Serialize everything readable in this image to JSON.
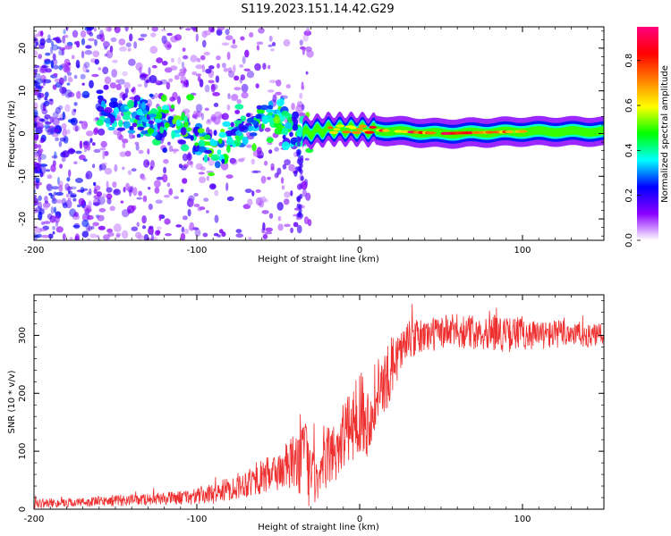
{
  "title": "S119.2023.151.14.42.G29",
  "chart_data": [
    {
      "type": "heatmap",
      "name": "spectrogram",
      "xlabel": "Height of straight line (km)",
      "ylabel": "Frequency (Hz)",
      "xlim": [
        -200,
        150
      ],
      "ylim": [
        -25,
        25
      ],
      "x_ticks": [
        "-200",
        "-100",
        "0",
        "100"
      ],
      "x_tick_values": [
        -200,
        -100,
        0,
        100
      ],
      "y_ticks": [
        "-20",
        "-10",
        "0",
        "10",
        "20"
      ],
      "y_tick_values": [
        -20,
        -10,
        0,
        10,
        20
      ],
      "colorbar": {
        "label": "Normalized spectral amplitude",
        "range": [
          0,
          0.95
        ],
        "ticks": [
          "0.0",
          "0.2",
          "0.4",
          "0.6",
          "0.8"
        ],
        "tick_values": [
          0.0,
          0.2,
          0.4,
          0.6,
          0.8
        ],
        "colors": [
          "#ffffff",
          "#8a00ff",
          "#0000ff",
          "#00ffff",
          "#00ff00",
          "#ffff00",
          "#ff8000",
          "#ff0000",
          "#ff0080"
        ]
      },
      "ridge": [
        {
          "x": -160,
          "freq": 6,
          "amp": 0.35
        },
        {
          "x": -130,
          "freq": 3,
          "amp": 0.4
        },
        {
          "x": -110,
          "freq": 2,
          "amp": 0.45
        },
        {
          "x": -90,
          "freq": -4,
          "amp": 0.45
        },
        {
          "x": -70,
          "freq": 1,
          "amp": 0.4
        },
        {
          "x": -50,
          "freq": 4,
          "amp": 0.45
        },
        {
          "x": -35,
          "freq": 0,
          "amp": 0.4
        },
        {
          "x": -20,
          "freq": 1,
          "amp": 0.7
        },
        {
          "x": 0,
          "freq": 1,
          "amp": 0.8
        },
        {
          "x": 50,
          "freq": 0,
          "amp": 0.9
        },
        {
          "x": 100,
          "freq": 0.5,
          "amp": 0.7
        },
        {
          "x": 150,
          "freq": 0.5,
          "amp": 0.6
        }
      ]
    },
    {
      "type": "line",
      "name": "snr",
      "xlabel": "Height of straight line (km)",
      "ylabel": "SNR (10 * v/v)",
      "xlim": [
        -200,
        150
      ],
      "ylim": [
        0,
        370
      ],
      "x_ticks": [
        "-200",
        "-100",
        "0",
        "100"
      ],
      "x_tick_values": [
        -200,
        -100,
        0,
        100
      ],
      "y_ticks": [
        "0",
        "100",
        "200",
        "300"
      ],
      "y_tick_values": [
        0,
        100,
        200,
        300
      ],
      "color": "#ee3030",
      "envelope": {
        "x": [
          -200,
          -170,
          -150,
          -130,
          -110,
          -100,
          -90,
          -80,
          -70,
          -60,
          -50,
          -40,
          -35,
          -30,
          -25,
          -20,
          -15,
          -10,
          -5,
          0,
          5,
          10,
          15,
          20,
          25,
          30,
          40,
          50,
          60,
          70,
          80,
          90,
          100,
          110,
          120,
          130,
          140,
          150
        ],
        "mean": [
          10,
          12,
          15,
          17,
          20,
          22,
          27,
          35,
          45,
          55,
          65,
          80,
          100,
          60,
          40,
          90,
          100,
          130,
          140,
          180,
          150,
          200,
          210,
          250,
          275,
          290,
          300,
          305,
          308,
          305,
          310,
          300,
          305,
          300,
          302,
          305,
          298,
          302
        ],
        "spread": [
          8,
          8,
          10,
          10,
          12,
          15,
          18,
          20,
          25,
          30,
          35,
          50,
          80,
          60,
          30,
          50,
          60,
          60,
          60,
          80,
          60,
          60,
          60,
          50,
          40,
          35,
          30,
          30,
          30,
          30,
          35,
          30,
          30,
          25,
          25,
          25,
          20,
          20
        ]
      }
    }
  ]
}
